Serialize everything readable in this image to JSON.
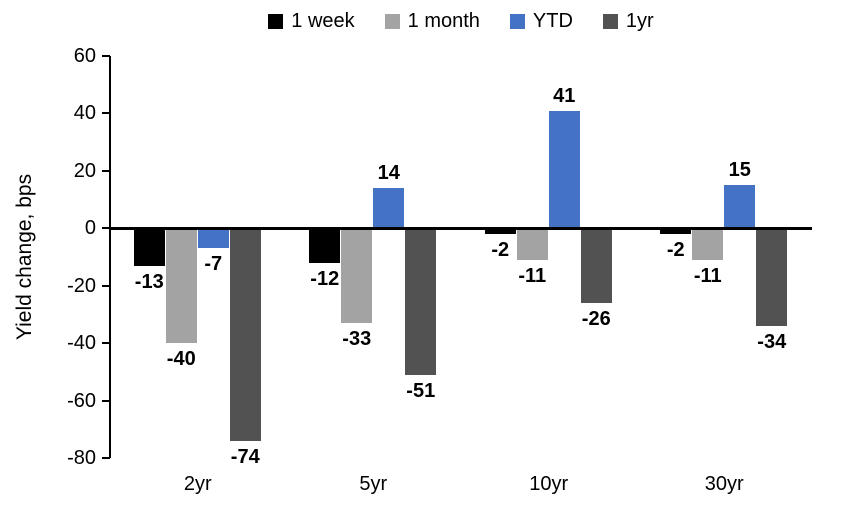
{
  "chart_data": {
    "type": "bar",
    "title": "",
    "xlabel": "",
    "ylabel": "Yield change, bps",
    "categories": [
      "2yr",
      "5yr",
      "10yr",
      "30yr"
    ],
    "series": [
      {
        "name": "1 week",
        "color": "#000000",
        "values": [
          -13,
          -12,
          -2,
          -2
        ]
      },
      {
        "name": "1 month",
        "color": "#a3a3a3",
        "values": [
          -40,
          -33,
          -11,
          -11
        ]
      },
      {
        "name": "YTD",
        "color": "#4472c4",
        "values": [
          -7,
          14,
          41,
          15
        ]
      },
      {
        "name": "1yr",
        "color": "#525252",
        "values": [
          -74,
          -51,
          -26,
          -34
        ]
      }
    ],
    "ylim": [
      -80,
      60
    ],
    "yticks": [
      60,
      40,
      20,
      0,
      -20,
      -40,
      -60,
      -80
    ],
    "grid": false,
    "legend_position": "top",
    "data_labels": true,
    "axis_color": "#000000",
    "background_color": "#ffffff"
  }
}
